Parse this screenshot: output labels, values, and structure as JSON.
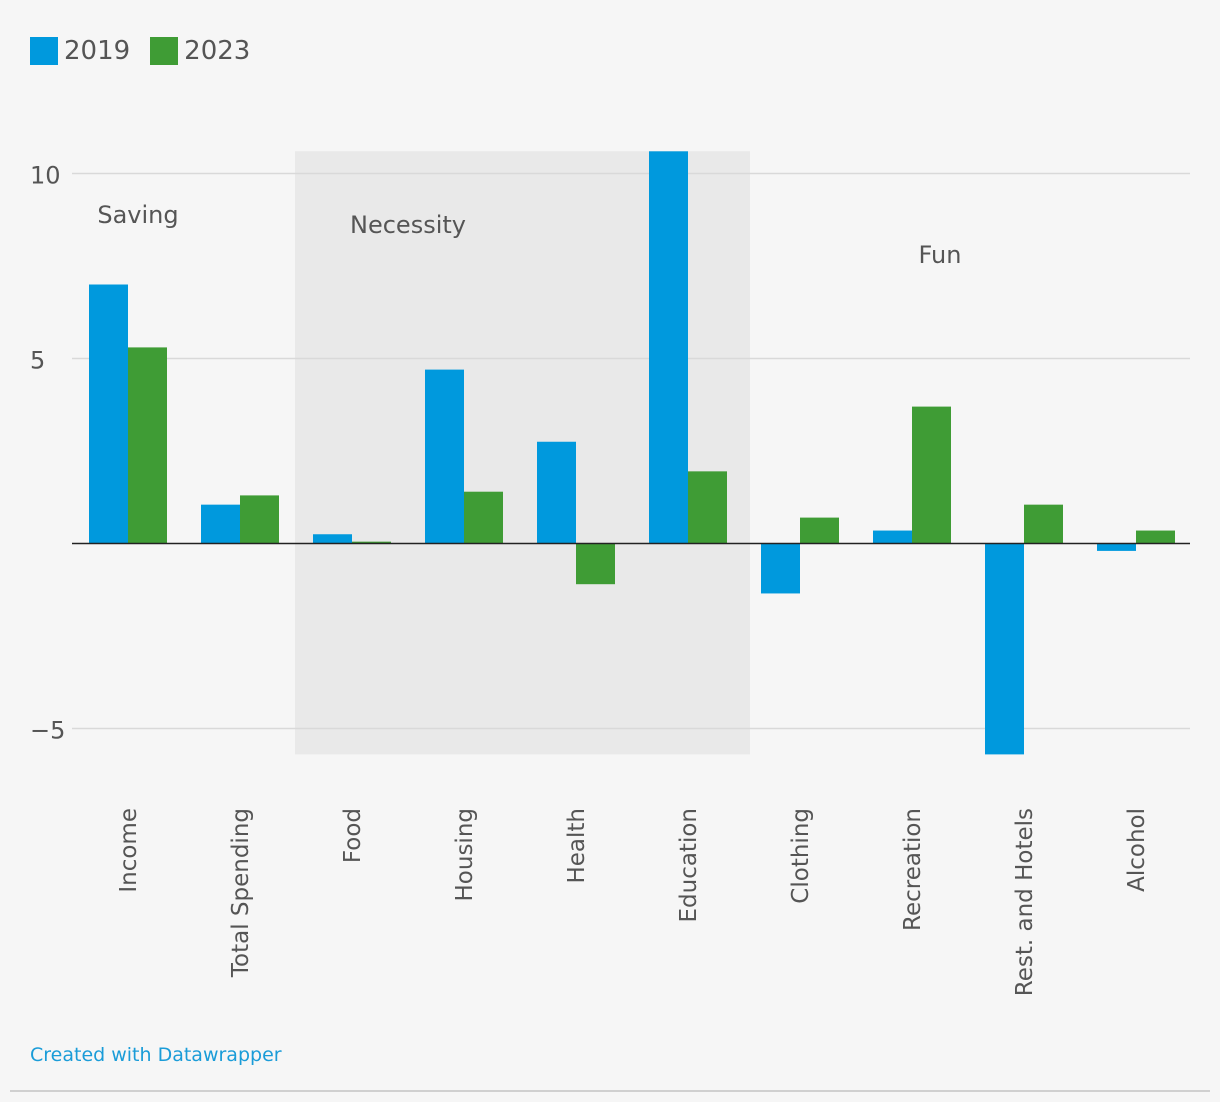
{
  "chart_data": {
    "type": "bar",
    "categories": [
      "Income",
      "Total Spending",
      "Food",
      "Housing",
      "Health",
      "Education",
      "Clothing",
      "Recreation",
      "Rest. and Hotels",
      "Alcohol"
    ],
    "series": [
      {
        "name": "2019",
        "color": "#0099dd",
        "values": [
          7.0,
          1.05,
          0.25,
          4.7,
          2.75,
          10.6,
          -1.35,
          0.35,
          -5.7,
          -0.2
        ]
      },
      {
        "name": "2023",
        "color": "#3f9c35",
        "values": [
          5.3,
          1.3,
          0.05,
          1.4,
          -1.1,
          1.95,
          0.7,
          3.7,
          1.05,
          0.35
        ]
      }
    ],
    "y_ticks": [
      10,
      5,
      0,
      -5
    ],
    "y_tick_labels": [
      "10",
      "5",
      "",
      "−5"
    ],
    "ylim": [
      -5.7,
      10.6
    ],
    "title": "",
    "xlabel": "",
    "ylabel": "",
    "annotations": [
      {
        "text": "Saving",
        "category_index": 0
      },
      {
        "text": "Necessity",
        "category_index": 2.5
      },
      {
        "text": "Fun",
        "category_index": 7.25
      }
    ],
    "highlight_range": {
      "label": "Necessity",
      "from_category": "Food",
      "to_category": "Education"
    }
  },
  "legend": {
    "items": [
      {
        "label": "2019",
        "color": "#0099dd"
      },
      {
        "label": "2023",
        "color": "#3f9c35"
      }
    ]
  },
  "footer": {
    "credit": "Created with Datawrapper"
  }
}
